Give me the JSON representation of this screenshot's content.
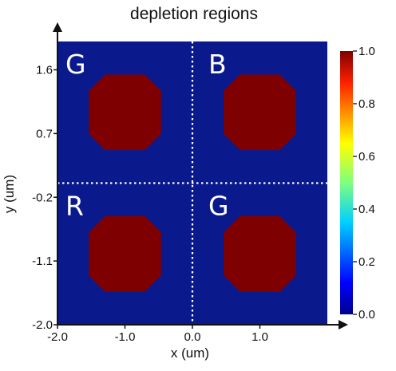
{
  "chart_data": {
    "type": "heatmap",
    "title": "depletion regions",
    "xlabel": "x (um)",
    "ylabel": "y (um)",
    "xlim": [
      -2.0,
      2.0
    ],
    "ylim": [
      -2.0,
      2.0
    ],
    "x_ticks": [
      {
        "value": -2.0,
        "label": "-2.0"
      },
      {
        "value": -1.0,
        "label": "-1.0"
      },
      {
        "value": 0.0,
        "label": "0.0"
      },
      {
        "value": 1.0,
        "label": "1.0"
      }
    ],
    "y_ticks": [
      {
        "value": -2.0,
        "label": "-2.0"
      },
      {
        "value": -1.1,
        "label": "-1.1"
      },
      {
        "value": -0.2,
        "label": "-0.2"
      },
      {
        "value": 0.7,
        "label": "0.7"
      },
      {
        "value": 1.6,
        "label": "1.6"
      }
    ],
    "background_value": 0.0,
    "regions": [
      {
        "center": [
          -1.0,
          1.0
        ],
        "width": 1.0,
        "height": 1.0,
        "value": 1.0
      },
      {
        "center": [
          1.0,
          1.0
        ],
        "width": 1.0,
        "height": 1.0,
        "value": 1.0
      },
      {
        "center": [
          -1.0,
          -1.0
        ],
        "width": 1.0,
        "height": 1.0,
        "value": 1.0
      },
      {
        "center": [
          1.0,
          -1.0
        ],
        "width": 1.0,
        "height": 1.0,
        "value": 1.0
      }
    ],
    "divider_lines": {
      "x": 0.0,
      "y": 0.0,
      "style": "dotted",
      "color": "#ffffff"
    },
    "quadrant_labels": [
      {
        "text": "G",
        "quadrant": "top-left"
      },
      {
        "text": "B",
        "quadrant": "top-right"
      },
      {
        "text": "R",
        "quadrant": "bottom-left"
      },
      {
        "text": "G",
        "quadrant": "bottom-right"
      }
    ],
    "colorbar": {
      "min": 0.0,
      "max": 1.0,
      "ticks": [
        {
          "value": 0.0,
          "label": "0.0"
        },
        {
          "value": 0.2,
          "label": "0.2"
        },
        {
          "value": 0.4,
          "label": "0.4"
        },
        {
          "value": 0.6,
          "label": "0.6"
        },
        {
          "value": 0.8,
          "label": "0.8"
        },
        {
          "value": 1.0,
          "label": "1.0"
        }
      ],
      "colormap": "jet",
      "placement": "right"
    },
    "colors": {
      "low": "#00008b",
      "background": "#0a1a8c",
      "high": "#7f0000"
    },
    "grid": false
  }
}
